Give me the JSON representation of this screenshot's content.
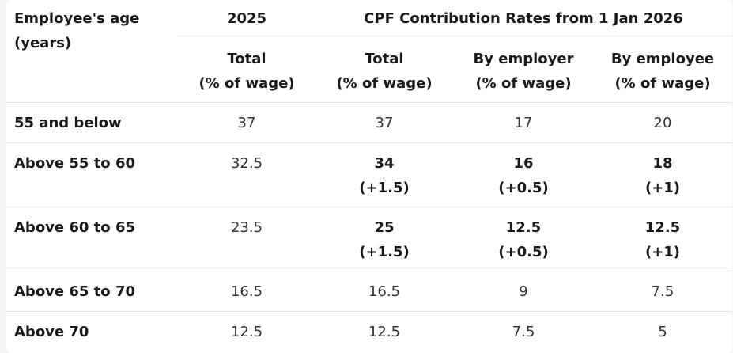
{
  "headers": {
    "age_line1": "Employee's age",
    "age_line2": "(years)",
    "year_2025": "2025",
    "rates_2026": "CPF Contribution Rates from 1 Jan 2026",
    "sub": [
      {
        "line1": "Total",
        "line2": "(% of wage)"
      },
      {
        "line1": "Total",
        "line2": "(% of wage)"
      },
      {
        "line1": "By employer",
        "line2": "(% of wage)"
      },
      {
        "line1": "By employee",
        "line2": "(% of wage)"
      }
    ]
  },
  "rows": [
    {
      "age": "55 and below",
      "total_2025": "37",
      "total_2026": "37",
      "total_2026_change": "",
      "employer": "17",
      "employer_change": "",
      "employee": "20",
      "employee_change": ""
    },
    {
      "age": "Above 55 to 60",
      "total_2025": "32.5",
      "total_2026": "34",
      "total_2026_change": "(+1.5)",
      "employer": "16",
      "employer_change": "(+0.5)",
      "employee": "18",
      "employee_change": "(+1)"
    },
    {
      "age": "Above 60 to 65",
      "total_2025": "23.5",
      "total_2026": "25",
      "total_2026_change": "(+1.5)",
      "employer": "12.5",
      "employer_change": "(+0.5)",
      "employee": "12.5",
      "employee_change": "(+1)"
    },
    {
      "age": "Above 65 to 70",
      "total_2025": "16.5",
      "total_2026": "16.5",
      "total_2026_change": "",
      "employer": "9",
      "employer_change": "",
      "employee": "7.5",
      "employee_change": ""
    },
    {
      "age": "Above 70",
      "total_2025": "12.5",
      "total_2026": "12.5",
      "total_2026_change": "",
      "employer": "7.5",
      "employer_change": "",
      "employee": "5",
      "employee_change": ""
    }
  ]
}
